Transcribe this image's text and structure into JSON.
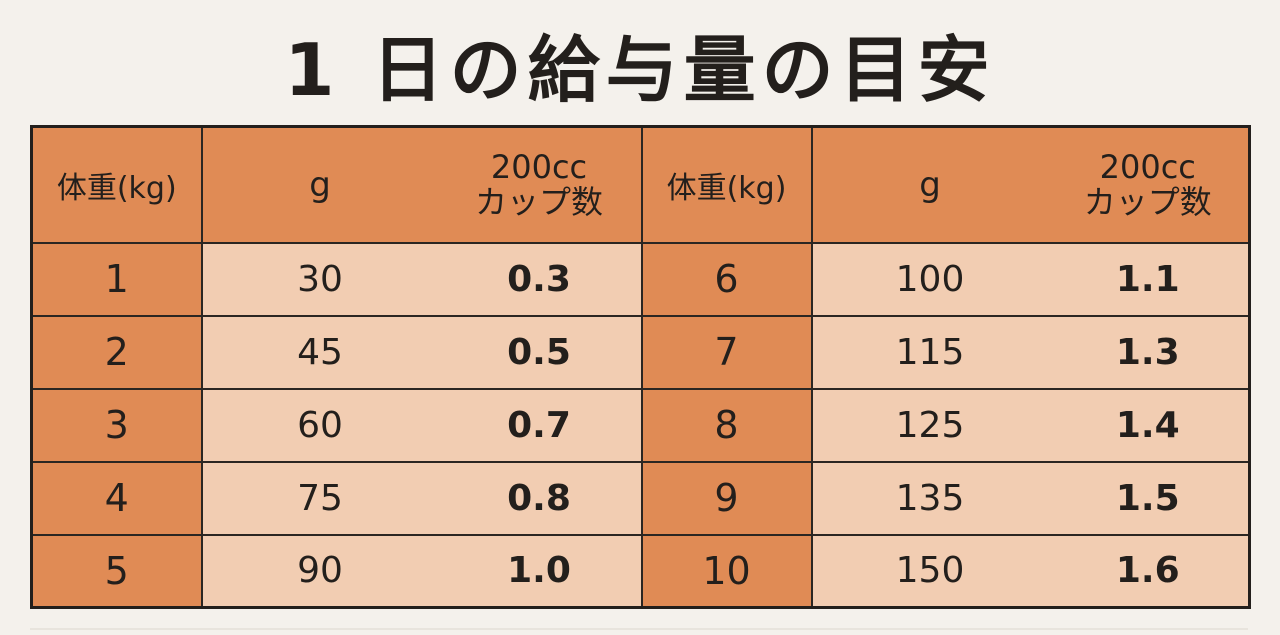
{
  "title": "1 日の給与量の目安",
  "table": {
    "headers": {
      "weight": "体重(kg)",
      "grams": "g",
      "cup_line1": "200cc",
      "cup_line2": "カップ数"
    },
    "left_rows": [
      {
        "weight": "1",
        "grams": "30",
        "cups": "0.3"
      },
      {
        "weight": "2",
        "grams": "45",
        "cups": "0.5"
      },
      {
        "weight": "3",
        "grams": "60",
        "cups": "0.7"
      },
      {
        "weight": "4",
        "grams": "75",
        "cups": "0.8"
      },
      {
        "weight": "5",
        "grams": "90",
        "cups": "1.0"
      }
    ],
    "right_rows": [
      {
        "weight": "6",
        "grams": "100",
        "cups": "1.1"
      },
      {
        "weight": "7",
        "grams": "115",
        "cups": "1.3"
      },
      {
        "weight": "8",
        "grams": "125",
        "cups": "1.4"
      },
      {
        "weight": "9",
        "grams": "135",
        "cups": "1.5"
      },
      {
        "weight": "10",
        "grams": "150",
        "cups": "1.6"
      }
    ]
  },
  "colors": {
    "header_bg": "#e08b55",
    "cell_bg": "#f2cdb2",
    "page_bg": "#f4f1ec"
  }
}
